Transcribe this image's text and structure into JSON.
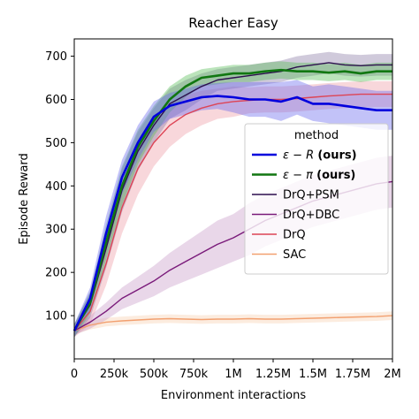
{
  "chart_data": {
    "type": "line",
    "title": "Reacher Easy",
    "xlabel": "Environment interactions",
    "ylabel": "Episode Reward",
    "xlim": [
      0,
      2000000
    ],
    "ylim": [
      0,
      740
    ],
    "grid": false,
    "x_ticks": [
      {
        "value": 0,
        "label": "0"
      },
      {
        "value": 250000,
        "label": "250k"
      },
      {
        "value": 500000,
        "label": "500k"
      },
      {
        "value": 750000,
        "label": "750k"
      },
      {
        "value": 1000000,
        "label": "1M"
      },
      {
        "value": 1250000,
        "label": "1.25M"
      },
      {
        "value": 1500000,
        "label": "1.5M"
      },
      {
        "value": 1750000,
        "label": "1.75M"
      },
      {
        "value": 2000000,
        "label": "2M"
      }
    ],
    "y_ticks": [
      100,
      200,
      300,
      400,
      500,
      600,
      700
    ],
    "legend": {
      "title": "method",
      "position": "center-right"
    },
    "x": [
      0,
      100000,
      200000,
      300000,
      400000,
      500000,
      600000,
      700000,
      800000,
      900000,
      1000000,
      1100000,
      1200000,
      1300000,
      1400000,
      1500000,
      1600000,
      1700000,
      1800000,
      1900000,
      2000000
    ],
    "series": [
      {
        "name": "ε − R",
        "name_math": "ε − R",
        "name_bold": "(ours)",
        "color": "#0000dd",
        "band_color": "#6666ee",
        "values": [
          65,
          140,
          290,
          420,
          500,
          560,
          585,
          595,
          605,
          608,
          605,
          600,
          600,
          595,
          605,
          590,
          590,
          585,
          580,
          575,
          575
        ],
        "band": [
          15,
          25,
          40,
          40,
          40,
          35,
          30,
          30,
          30,
          30,
          35,
          40,
          40,
          45,
          40,
          40,
          45,
          45,
          45,
          45,
          45
        ]
      },
      {
        "name": "ε − π",
        "name_math": "ε − π",
        "name_bold": "(ours)",
        "color": "#117711",
        "band_color": "#55bb55",
        "values": [
          65,
          130,
          270,
          400,
          490,
          550,
          600,
          630,
          650,
          655,
          660,
          660,
          665,
          668,
          665,
          665,
          662,
          665,
          660,
          665,
          665
        ],
        "band": [
          15,
          25,
          40,
          45,
          40,
          35,
          30,
          25,
          20,
          20,
          20,
          20,
          20,
          20,
          20,
          20,
          20,
          20,
          20,
          20,
          20
        ]
      },
      {
        "name": "DrQ+PSM",
        "color": "#2d0f4e",
        "band_color": "#8a7aa6",
        "values": [
          65,
          125,
          255,
          390,
          480,
          540,
          590,
          610,
          630,
          645,
          650,
          655,
          660,
          665,
          675,
          680,
          685,
          680,
          678,
          680,
          680
        ],
        "band": [
          15,
          30,
          45,
          50,
          45,
          40,
          35,
          35,
          30,
          25,
          25,
          25,
          25,
          25,
          25,
          25,
          25,
          25,
          25,
          25,
          25
        ]
      },
      {
        "name": "DrQ+DBC",
        "color": "#7a1a7a",
        "band_color": "#c79ac7",
        "values": [
          65,
          85,
          110,
          140,
          160,
          180,
          205,
          225,
          245,
          265,
          280,
          300,
          320,
          335,
          350,
          365,
          375,
          385,
          395,
          405,
          410
        ],
        "band": [
          10,
          15,
          20,
          25,
          30,
          35,
          40,
          45,
          50,
          55,
          55,
          60,
          60,
          60,
          60,
          60,
          60,
          60,
          60,
          60,
          60
        ]
      },
      {
        "name": "DrQ",
        "color": "#dd4455",
        "band_color": "#ee9aa4",
        "values": [
          65,
          110,
          220,
          350,
          440,
          500,
          540,
          565,
          580,
          590,
          595,
          598,
          600,
          600,
          602,
          605,
          608,
          610,
          612,
          612,
          612
        ],
        "band": [
          15,
          30,
          50,
          60,
          60,
          55,
          50,
          45,
          40,
          35,
          35,
          30,
          30,
          30,
          30,
          30,
          30,
          30,
          30,
          30,
          30
        ]
      },
      {
        "name": "SAC",
        "color": "#f2a070",
        "band_color": "#f8cfb0",
        "values": [
          65,
          78,
          85,
          88,
          90,
          92,
          93,
          92,
          91,
          92,
          92,
          93,
          92,
          92,
          93,
          94,
          95,
          96,
          97,
          98,
          100
        ],
        "band": [
          8,
          10,
          10,
          10,
          10,
          10,
          10,
          10,
          10,
          10,
          10,
          10,
          10,
          10,
          10,
          10,
          10,
          10,
          10,
          10,
          10
        ]
      }
    ]
  }
}
